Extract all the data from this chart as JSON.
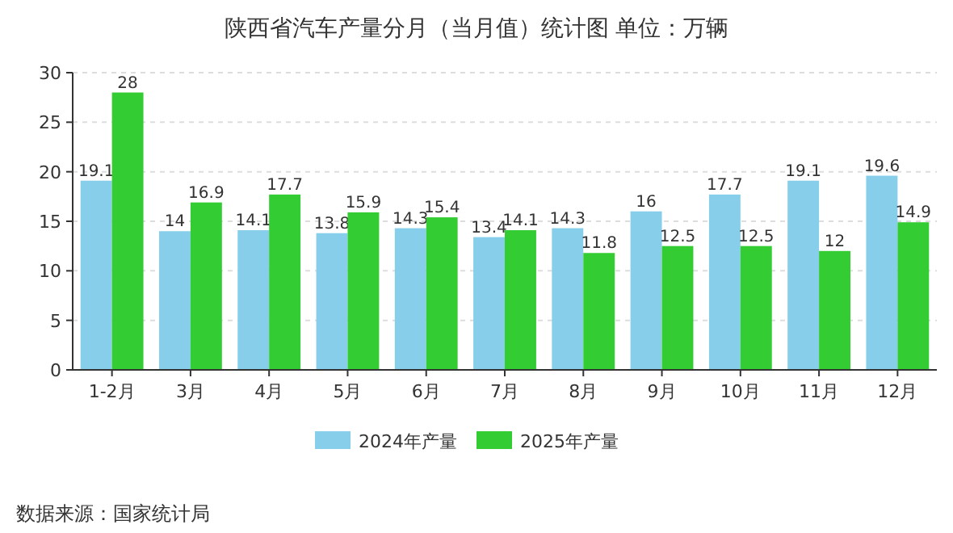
{
  "chart_data": {
    "type": "bar",
    "title": "陕西省汽车产量分月（当月值）统计图 单位：万辆",
    "categories": [
      "1-2月",
      "3月",
      "4月",
      "5月",
      "6月",
      "7月",
      "8月",
      "9月",
      "10月",
      "11月",
      "12月"
    ],
    "series": [
      {
        "name": "2024年产量",
        "color": "#87ceeb",
        "values": [
          19.1,
          14,
          14.1,
          13.8,
          14.3,
          13.4,
          14.3,
          16,
          17.7,
          19.1,
          19.6
        ]
      },
      {
        "name": "2025年产量",
        "color": "#33cc33",
        "values": [
          28,
          16.9,
          17.7,
          15.9,
          15.4,
          14.1,
          11.8,
          12.5,
          12.5,
          12,
          14.9
        ]
      }
    ],
    "ylim": [
      0,
      30
    ],
    "yticks": [
      0,
      5,
      10,
      15,
      20,
      25,
      30
    ],
    "grid": "y",
    "legend": "bottom",
    "data_labels": true,
    "annotations": [
      "数据来源：国家统计局"
    ]
  }
}
